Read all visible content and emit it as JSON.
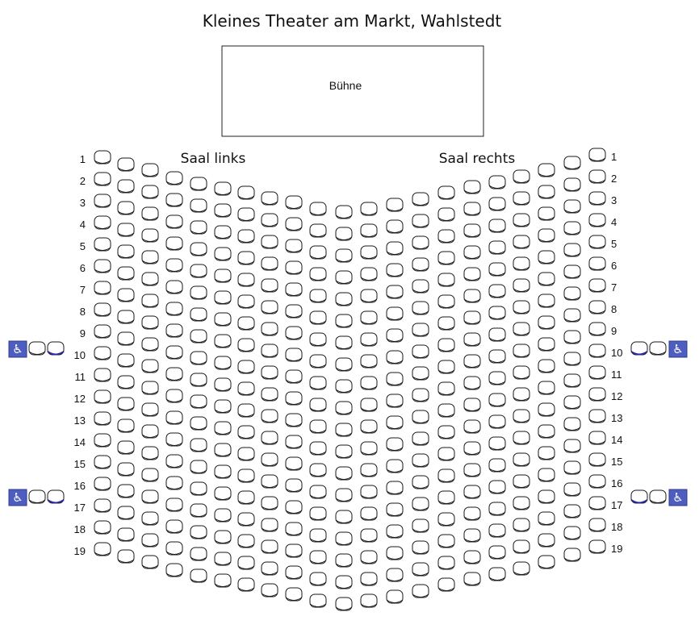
{
  "title": "Kleines Theater am Markt, Wahlstedt",
  "stage_label": "Bühne",
  "sections": {
    "left": "Saal links",
    "right": "Saal rechts"
  },
  "row_labels": [
    "1",
    "2",
    "3",
    "4",
    "5",
    "6",
    "7",
    "8",
    "9",
    "10",
    "11",
    "12",
    "13",
    "14",
    "15",
    "16",
    "17",
    "18",
    "19"
  ],
  "wheelchair_rows": [
    "10",
    "17"
  ],
  "icons": {
    "wheelchair": "wheelchair-icon",
    "seat": "seat-icon"
  },
  "colors": {
    "seat_fill": "#ffffff",
    "seat_outline": "#1a1a1a",
    "wheelchair_badge": "#4d5ec0",
    "wheelchair_seat_highlight": "#2a2a9a"
  }
}
